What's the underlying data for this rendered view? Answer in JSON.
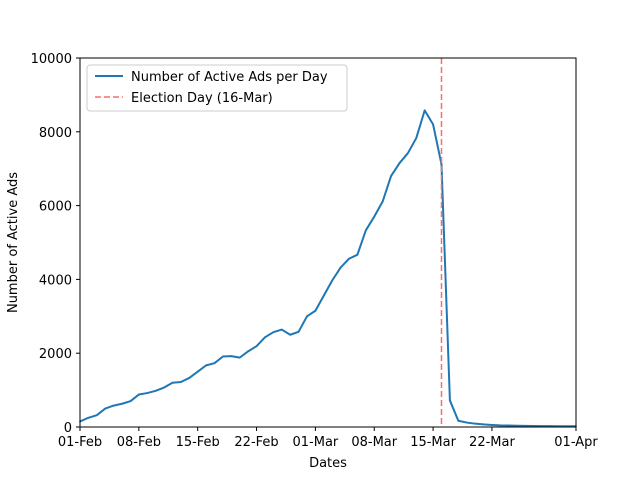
{
  "chart_data": {
    "type": "line",
    "title": "",
    "xlabel": "Dates",
    "ylabel": "Number of Active Ads",
    "xlim": [
      "2019-02-01",
      "2019-04-01"
    ],
    "ylim": [
      0,
      10000
    ],
    "grid": false,
    "legend_position": "top-left",
    "x_ticks": [
      {
        "date": "2019-02-01",
        "label": "01-Feb"
      },
      {
        "date": "2019-02-08",
        "label": "08-Feb"
      },
      {
        "date": "2019-02-15",
        "label": "15-Feb"
      },
      {
        "date": "2019-02-22",
        "label": "22-Feb"
      },
      {
        "date": "2019-03-01",
        "label": "01-Mar"
      },
      {
        "date": "2019-03-08",
        "label": "08-Mar"
      },
      {
        "date": "2019-03-15",
        "label": "15-Mar"
      },
      {
        "date": "2019-03-22",
        "label": "22-Mar"
      },
      {
        "date": "2019-04-01",
        "label": "01-Apr"
      }
    ],
    "y_ticks": [
      {
        "value": 0,
        "label": "0"
      },
      {
        "value": 2000,
        "label": "2000"
      },
      {
        "value": 4000,
        "label": "4000"
      },
      {
        "value": 6000,
        "label": "6000"
      },
      {
        "value": 8000,
        "label": "8000"
      },
      {
        "value": 10000,
        "label": "10000"
      }
    ],
    "series": [
      {
        "name": "Number of Active Ads per Day",
        "color": "#1f77b4",
        "style": "solid",
        "x": [
          "2019-02-01",
          "2019-02-02",
          "2019-02-03",
          "2019-02-04",
          "2019-02-05",
          "2019-02-06",
          "2019-02-07",
          "2019-02-08",
          "2019-02-09",
          "2019-02-10",
          "2019-02-11",
          "2019-02-12",
          "2019-02-13",
          "2019-02-14",
          "2019-02-15",
          "2019-02-16",
          "2019-02-17",
          "2019-02-18",
          "2019-02-19",
          "2019-02-20",
          "2019-02-21",
          "2019-02-22",
          "2019-02-23",
          "2019-02-24",
          "2019-02-25",
          "2019-02-26",
          "2019-02-27",
          "2019-02-28",
          "2019-03-01",
          "2019-03-02",
          "2019-03-03",
          "2019-03-04",
          "2019-03-05",
          "2019-03-06",
          "2019-03-07",
          "2019-03-08",
          "2019-03-09",
          "2019-03-10",
          "2019-03-11",
          "2019-03-12",
          "2019-03-13",
          "2019-03-14",
          "2019-03-15",
          "2019-03-16",
          "2019-03-17",
          "2019-03-18",
          "2019-03-19",
          "2019-03-20",
          "2019-03-21",
          "2019-03-22",
          "2019-03-23",
          "2019-03-24",
          "2019-03-25",
          "2019-03-26",
          "2019-03-27",
          "2019-03-28",
          "2019-03-29",
          "2019-03-30",
          "2019-03-31",
          "2019-04-01"
        ],
        "values": [
          150,
          250,
          320,
          500,
          580,
          630,
          700,
          880,
          920,
          980,
          1070,
          1200,
          1220,
          1330,
          1500,
          1670,
          1730,
          1910,
          1920,
          1880,
          2050,
          2190,
          2430,
          2570,
          2640,
          2500,
          2580,
          3000,
          3150,
          3560,
          3970,
          4320,
          4560,
          4670,
          5330,
          5700,
          6110,
          6800,
          7150,
          7420,
          7830,
          8580,
          8200,
          7120,
          720,
          170,
          120,
          90,
          70,
          55,
          45,
          40,
          35,
          30,
          28,
          25,
          24,
          22,
          20,
          20
        ]
      },
      {
        "name": "Election Day (16-Mar)",
        "color": "#ff6b6b",
        "style": "dashed",
        "type": "vline",
        "x": "2019-03-16"
      }
    ]
  }
}
